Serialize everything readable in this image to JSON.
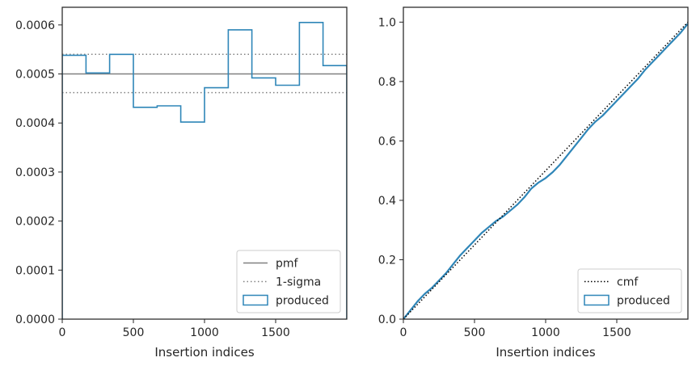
{
  "chart_data": [
    {
      "type": "histogram-step",
      "xlabel": "Insertion indices",
      "xlim": [
        0,
        2000
      ],
      "ylim": [
        0,
        0.000636
      ],
      "xticks": [
        0,
        500,
        1000,
        1500
      ],
      "xtick_labels": [
        "0",
        "500",
        "1000",
        "1500"
      ],
      "yticks": [
        0,
        0.0001,
        0.0002,
        0.0003,
        0.0004,
        0.0005,
        0.0006
      ],
      "ytick_labels": [
        "0.0000",
        "0.0001",
        "0.0002",
        "0.0003",
        "0.0004",
        "0.0005",
        "0.0006"
      ],
      "grid": false,
      "legend_position": "lower-right",
      "legend": [
        "pmf",
        "1-sigma",
        "produced"
      ],
      "pmf": {
        "name": "pmf",
        "value": 0.0005,
        "color": "#808080"
      },
      "sigma": {
        "name": "1-sigma",
        "values": [
          0.00054,
          0.000462
        ],
        "color": "#808080"
      },
      "produced": {
        "name": "produced",
        "color": "#2f86b8",
        "bin_edges": [
          0,
          167,
          333,
          500,
          667,
          833,
          1000,
          1167,
          1333,
          1500,
          1667,
          1833,
          2000
        ],
        "values": [
          0.000538,
          0.000502,
          0.00054,
          0.000432,
          0.000435,
          0.000402,
          0.000472,
          0.00059,
          0.000492,
          0.000477,
          0.000605,
          0.000517
        ]
      }
    },
    {
      "type": "line",
      "xlabel": "Insertion indices",
      "xlim": [
        0,
        2000
      ],
      "ylim": [
        0,
        1.05
      ],
      "xticks": [
        0,
        500,
        1000,
        1500
      ],
      "xtick_labels": [
        "0",
        "500",
        "1000",
        "1500"
      ],
      "yticks": [
        0,
        0.2,
        0.4,
        0.6,
        0.8,
        1.0
      ],
      "ytick_labels": [
        "0.0",
        "0.2",
        "0.4",
        "0.6",
        "0.8",
        "1.0"
      ],
      "grid": false,
      "legend_position": "lower-right",
      "legend": [
        "cmf",
        "produced"
      ],
      "cmf": {
        "name": "cmf",
        "x": [
          0,
          2000
        ],
        "y": [
          0,
          1
        ],
        "color": "#000000"
      },
      "produced": {
        "name": "produced",
        "color": "#2f86b8",
        "x": [
          0,
          50,
          100,
          150,
          200,
          250,
          300,
          350,
          400,
          450,
          500,
          550,
          600,
          650,
          700,
          750,
          800,
          850,
          900,
          950,
          1000,
          1050,
          1100,
          1150,
          1200,
          1250,
          1300,
          1350,
          1400,
          1450,
          1500,
          1550,
          1600,
          1650,
          1700,
          1750,
          1800,
          1850,
          1900,
          1950,
          2000
        ],
        "y": [
          0,
          0.03,
          0.06,
          0.085,
          0.105,
          0.13,
          0.155,
          0.185,
          0.215,
          0.24,
          0.265,
          0.29,
          0.31,
          0.33,
          0.345,
          0.365,
          0.385,
          0.41,
          0.44,
          0.46,
          0.475,
          0.495,
          0.52,
          0.55,
          0.58,
          0.61,
          0.64,
          0.665,
          0.685,
          0.71,
          0.735,
          0.76,
          0.785,
          0.81,
          0.84,
          0.865,
          0.89,
          0.915,
          0.94,
          0.965,
          0.995
        ]
      }
    }
  ]
}
